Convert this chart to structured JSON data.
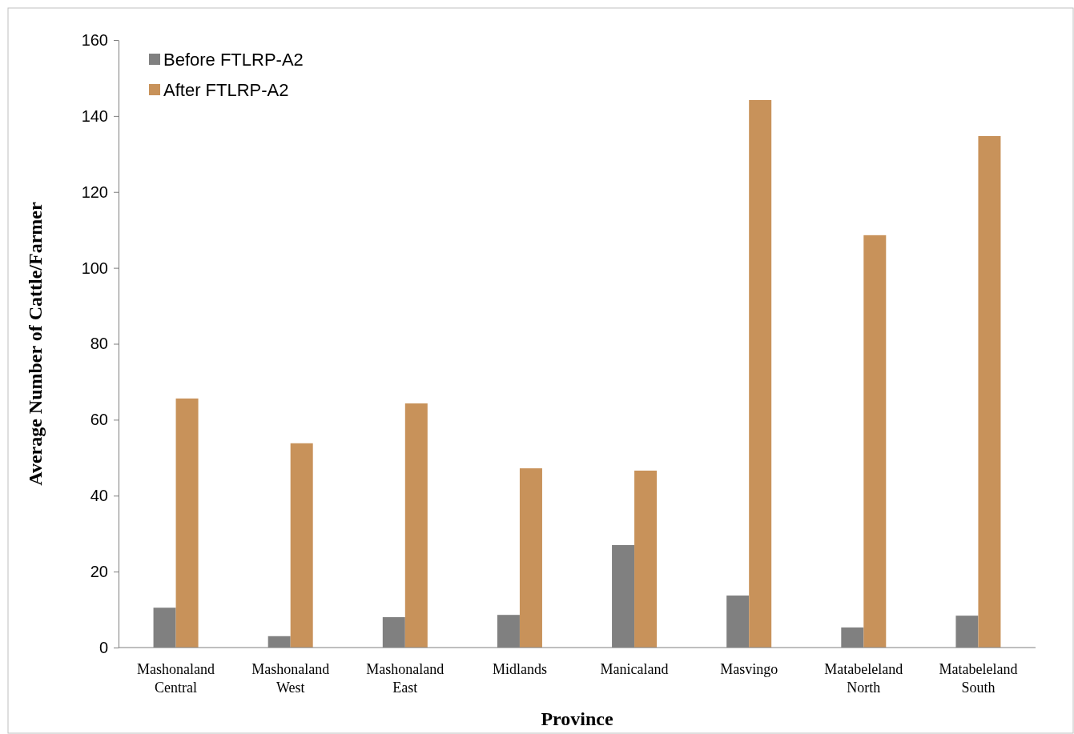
{
  "chart_data": {
    "type": "bar",
    "xlabel": "Province",
    "ylabel": "Average Number of Cattle/Farmer",
    "categories": [
      "Mashonaland Central",
      "Mashonaland West",
      "Mashonaland East",
      "Midlands",
      "Manicaland",
      "Masvingo",
      "Matabeleland North",
      "Matabeleland South"
    ],
    "series": [
      {
        "name": "Before FTLRP-A2",
        "color": "#808080",
        "values": [
          10.5,
          3,
          8,
          8.6,
          27,
          13.7,
          5.3,
          8.4
        ]
      },
      {
        "name": "After FTLRP-A2",
        "color": "#c8925a",
        "values": [
          65.6,
          53.8,
          64.3,
          47.2,
          46.6,
          144.2,
          108.6,
          134.7
        ]
      }
    ],
    "ylim": [
      0,
      160
    ],
    "yticks": [
      0,
      20,
      40,
      60,
      80,
      100,
      120,
      140,
      160
    ],
    "grid": false,
    "legend": "top left"
  }
}
